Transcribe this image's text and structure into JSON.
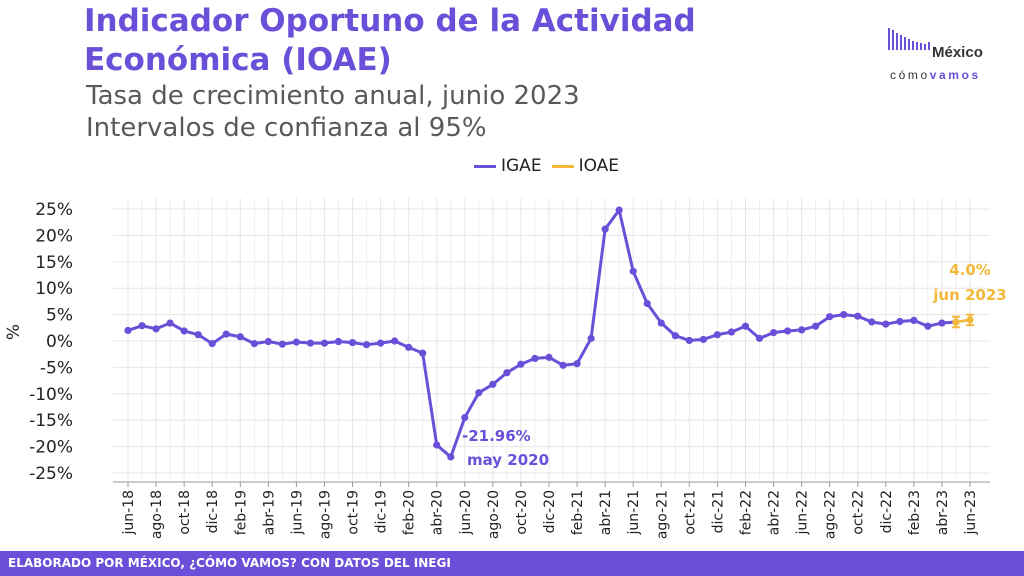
{
  "header": {
    "title": "Indicador Oportuno de la Actividad Económica (IOAE)",
    "subtitle_line1": "Tasa de crecimiento anual, junio 2023",
    "subtitle_line2": "Intervalos de confianza al 95%"
  },
  "logo": {
    "name": "México",
    "tag_a": "cómo",
    "tag_b": "vamos"
  },
  "footer": {
    "text": "ELABORADO POR MÉXICO, ¿CÓMO VAMOS? CON DATOS DEL INEGI"
  },
  "colors": {
    "igae": "#6a4fd8",
    "ioae": "#f3b93a",
    "grid": "#e6e6e6"
  },
  "chart_data": {
    "type": "line",
    "ylabel": "%",
    "ylim": [
      -25,
      25
    ],
    "yticks": [
      25,
      20,
      15,
      10,
      5,
      0,
      -5,
      -10,
      -15,
      -20,
      -25
    ],
    "ytick_labels": [
      "25%",
      "20%",
      "15%",
      "10%",
      "5%",
      "0%",
      "-5%",
      "-10%",
      "-15%",
      "-20%",
      "-25%"
    ],
    "xtick_labels": [
      "jun-18",
      "ago-18",
      "oct-18",
      "dic-18",
      "feb-19",
      "abr-19",
      "jun-19",
      "ago-19",
      "oct-19",
      "dic-19",
      "feb-20",
      "abr-20",
      "jun-20",
      "ago-20",
      "oct-20",
      "dic-20",
      "feb-21",
      "abr-21",
      "jun-21",
      "ago-21",
      "oct-21",
      "dic-21",
      "feb-22",
      "abr-22",
      "jun-22",
      "ago-22",
      "oct-22",
      "dic-22",
      "feb-23",
      "abr-23",
      "jun-23"
    ],
    "grid": true,
    "legend": "top-center",
    "series": [
      {
        "name": "IGAE",
        "x": [
          "jun-18",
          "jul-18",
          "ago-18",
          "sep-18",
          "oct-18",
          "nov-18",
          "dic-18",
          "ene-19",
          "feb-19",
          "mar-19",
          "abr-19",
          "may-19",
          "jun-19",
          "jul-19",
          "ago-19",
          "sep-19",
          "oct-19",
          "nov-19",
          "dic-19",
          "ene-20",
          "feb-20",
          "mar-20",
          "abr-20",
          "may-20",
          "jun-20",
          "jul-20",
          "ago-20",
          "sep-20",
          "oct-20",
          "nov-20",
          "dic-20",
          "ene-21",
          "feb-21",
          "mar-21",
          "abr-21",
          "may-21",
          "jun-21",
          "jul-21",
          "ago-21",
          "sep-21",
          "oct-21",
          "nov-21",
          "dic-21",
          "ene-22",
          "feb-22",
          "mar-22",
          "abr-22",
          "may-22",
          "jun-22",
          "jul-22",
          "ago-22",
          "sep-22",
          "oct-22",
          "nov-22",
          "dic-22",
          "ene-23",
          "feb-23",
          "mar-23",
          "abr-23",
          "may-23"
        ],
        "values": [
          2.0,
          2.9,
          2.3,
          3.4,
          1.9,
          1.2,
          -0.5,
          1.3,
          0.8,
          -0.5,
          -0.1,
          -0.6,
          -0.2,
          -0.4,
          -0.4,
          -0.1,
          -0.3,
          -0.7,
          -0.4,
          0.0,
          -1.2,
          -2.3,
          -19.7,
          -21.96,
          -14.5,
          -9.8,
          -8.2,
          -6.0,
          -4.4,
          -3.3,
          -3.1,
          -4.6,
          -4.3,
          0.5,
          21.2,
          24.8,
          13.2,
          7.1,
          3.4,
          1.0,
          0.1,
          0.3,
          1.2,
          1.7,
          2.8,
          0.5,
          1.6,
          1.9,
          2.1,
          2.8,
          4.6,
          5.0,
          4.7,
          3.6,
          3.2,
          3.7,
          3.9,
          2.8,
          3.4,
          3.6
        ]
      },
      {
        "name": "IOAE",
        "x": [
          "may-23",
          "jun-23"
        ],
        "values": [
          3.6,
          4.0
        ],
        "intervals": [
          [
            2.6,
            4.6
          ],
          [
            3.0,
            5.0
          ]
        ]
      }
    ],
    "annotations": [
      {
        "value_text": "-21.96%",
        "date_text": "may 2020",
        "series": "IGAE",
        "x": "may-20",
        "y": -21.96
      },
      {
        "value_text": "4.0%",
        "date_text": "jun 2023",
        "series": "IOAE",
        "x": "jun-23",
        "y": 4.0
      }
    ]
  }
}
